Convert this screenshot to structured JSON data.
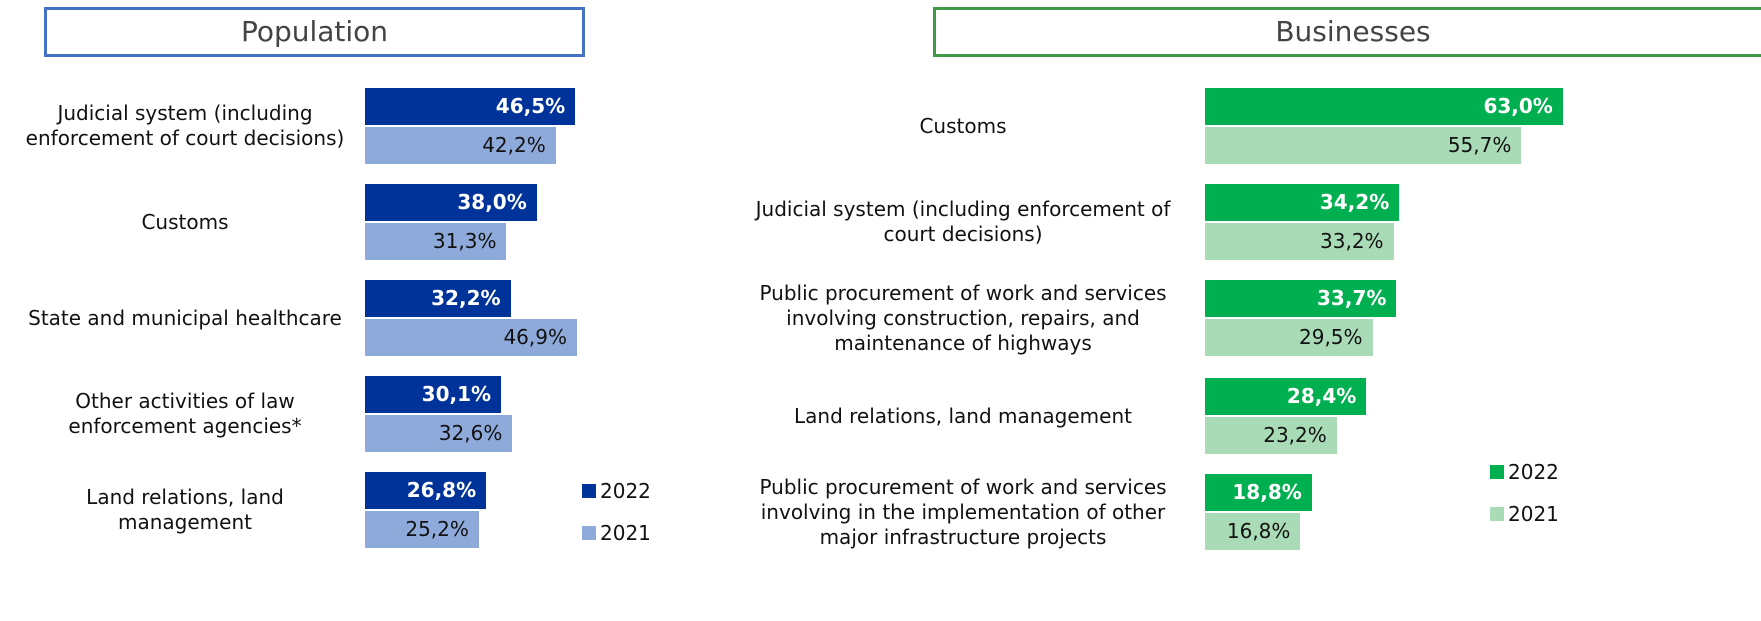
{
  "chart_data": [
    {
      "type": "barh",
      "title": "Population",
      "categories": [
        "Judicial system (including enforcement of court decisions)",
        "Customs",
        "State and municipal healthcare",
        "Other activities of law enforcement agencies*",
        "Land relations, land management"
      ],
      "series": [
        {
          "name": "2022",
          "color": "#003399",
          "values": [
            46.5,
            38.0,
            32.2,
            30.1,
            26.8
          ],
          "value_labels": [
            "46,5%",
            "38,0%",
            "32,2%",
            "30,1%",
            "26,8%"
          ]
        },
        {
          "name": "2021",
          "color": "#8eaadb",
          "values": [
            42.2,
            31.3,
            46.9,
            32.6,
            25.2
          ],
          "value_labels": [
            "42,2%",
            "31,3%",
            "46,9%",
            "32,6%",
            "25,2%"
          ]
        }
      ]
    },
    {
      "type": "barh",
      "title": "Businesses",
      "categories": [
        "Customs",
        "Judicial system (including enforcement of court decisions)",
        "Public procurement of work and services involving construction, repairs, and maintenance of highways",
        "Land relations, land management",
        "Public procurement of work and services involving in the implementation of other major infrastructure projects"
      ],
      "series": [
        {
          "name": "2022",
          "color": "#00b050",
          "values": [
            63.0,
            34.2,
            33.7,
            28.4,
            18.8
          ],
          "value_labels": [
            "63,0%",
            "34,2%",
            "33,7%",
            "28,4%",
            "18,8%"
          ]
        },
        {
          "name": "2021",
          "color": "#a9dbb6",
          "values": [
            55.7,
            33.2,
            29.5,
            23.2,
            16.8
          ],
          "value_labels": [
            "55,7%",
            "33,2%",
            "29,5%",
            "23,2%",
            "16,8%"
          ]
        }
      ]
    }
  ]
}
